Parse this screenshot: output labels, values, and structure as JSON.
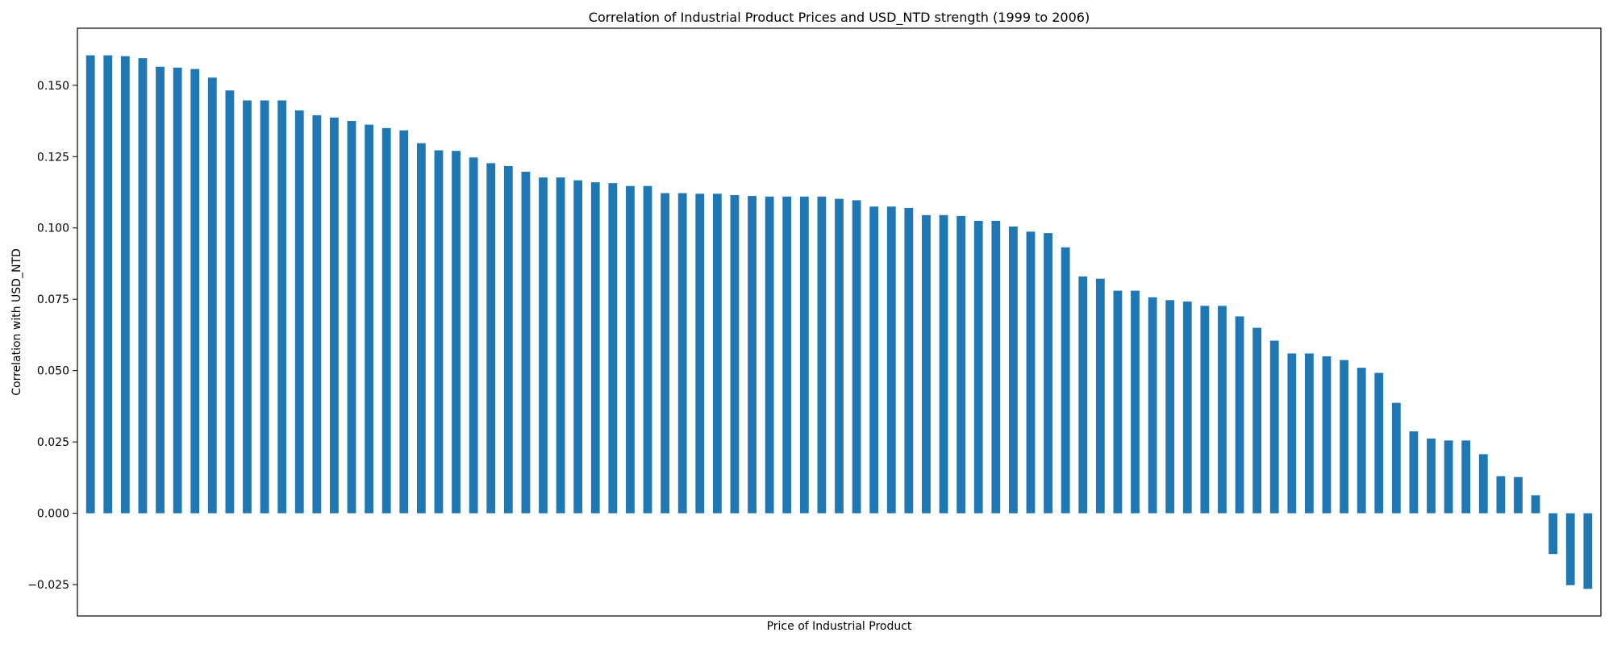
{
  "chart_data": {
    "type": "bar",
    "title": "Correlation of Industrial Product Prices and USD_NTD strength (1999 to 2006)",
    "xlabel": "Price of Industrial Product",
    "ylabel": "Correlation with USD_NTD",
    "ylim": [
      -0.036,
      0.17
    ],
    "yticks": [
      -0.025,
      0.0,
      0.025,
      0.05,
      0.075,
      0.1,
      0.125,
      0.15
    ],
    "ytick_labels": [
      "−0.025",
      "0.000",
      "0.025",
      "0.050",
      "0.075",
      "0.100",
      "0.125",
      "0.150"
    ],
    "x_tick_labels_visible": false,
    "grid": false,
    "bar_color": "#1f77b4",
    "values": [
      0.1605,
      0.1605,
      0.1602,
      0.1595,
      0.1565,
      0.1562,
      0.1557,
      0.1527,
      0.1482,
      0.1447,
      0.1447,
      0.1447,
      0.1412,
      0.1395,
      0.1387,
      0.1375,
      0.1362,
      0.135,
      0.1342,
      0.1297,
      0.1272,
      0.127,
      0.1247,
      0.1227,
      0.1217,
      0.1197,
      0.1177,
      0.1177,
      0.1167,
      0.116,
      0.1157,
      0.1147,
      0.1147,
      0.1122,
      0.1122,
      0.112,
      0.112,
      0.1115,
      0.1112,
      0.111,
      0.111,
      0.111,
      0.111,
      0.1102,
      0.1097,
      0.1075,
      0.1075,
      0.107,
      0.1045,
      0.1045,
      0.1042,
      0.1025,
      0.1025,
      0.1005,
      0.0987,
      0.0982,
      0.0932,
      0.083,
      0.0822,
      0.078,
      0.078,
      0.0757,
      0.0747,
      0.0742,
      0.0727,
      0.0727,
      0.069,
      0.065,
      0.0605,
      0.056,
      0.056,
      0.055,
      0.0537,
      0.051,
      0.0492,
      0.0387,
      0.0287,
      0.0262,
      0.0255,
      0.0255,
      0.0207,
      0.013,
      0.0127,
      0.0063,
      -0.0143,
      -0.0252,
      -0.0265
    ]
  }
}
